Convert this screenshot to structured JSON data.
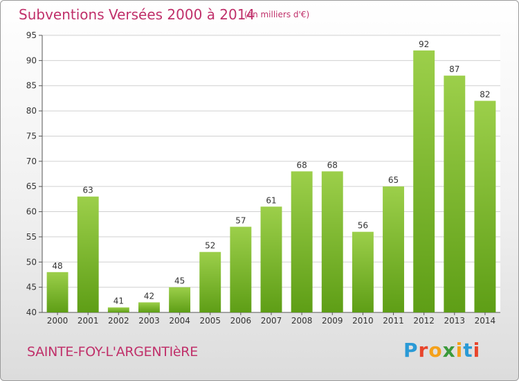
{
  "header": {
    "title": "Subventions Versées 2000 à 2014",
    "unit_note": "(en milliers d'€)"
  },
  "footer": {
    "town": "SAINTE-FOY-L'ARGENTIèRE",
    "logo_letters": [
      {
        "ch": "P",
        "color": "#2a9ad6"
      },
      {
        "ch": "r",
        "color": "#e8452c"
      },
      {
        "ch": "o",
        "color": "#f4a11b"
      },
      {
        "ch": "x",
        "color": "#3a9a3a"
      },
      {
        "ch": "i",
        "color": "#f4a11b"
      },
      {
        "ch": "t",
        "color": "#2a9ad6"
      },
      {
        "ch": "i",
        "color": "#e8452c"
      }
    ]
  },
  "colors": {
    "bar_top": "#9ccf4a",
    "bar_bottom": "#5e9e16",
    "text": "#c0306a",
    "grid": "#d0d0d0"
  },
  "chart_data": {
    "type": "bar",
    "title": "Subventions Versées 2000 à 2014",
    "subtitle": "(en milliers d'€)",
    "xlabel": "",
    "ylabel": "",
    "categories": [
      "2000",
      "2001",
      "2002",
      "2003",
      "2004",
      "2005",
      "2006",
      "2007",
      "2008",
      "2009",
      "2010",
      "2011",
      "2012",
      "2013",
      "2014"
    ],
    "values": [
      48,
      63,
      41,
      42,
      45,
      52,
      57,
      61,
      68,
      68,
      56,
      65,
      92,
      87,
      82
    ],
    "ylim": [
      40,
      95
    ],
    "yticks": [
      40,
      45,
      50,
      55,
      60,
      65,
      70,
      75,
      80,
      85,
      90,
      95
    ],
    "grid": true,
    "legend": "none"
  }
}
